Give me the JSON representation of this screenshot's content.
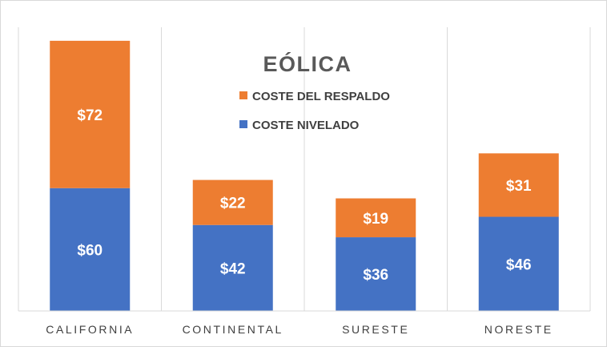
{
  "chart_data": {
    "type": "bar",
    "stacked": true,
    "title": "EÓLICA",
    "categories": [
      "CALIFORNIA",
      "CONTINENTAL",
      "SURESTE",
      "NORESTE"
    ],
    "series": [
      {
        "name": "COSTE NIVELADO",
        "color": "#4472C4",
        "values": [
          60,
          42,
          36,
          46
        ],
        "labels": [
          "$60",
          "$42",
          "$36",
          "$46"
        ]
      },
      {
        "name": "COSTE DEL RESPALDO",
        "color": "#ED7D31",
        "values": [
          72,
          22,
          19,
          31
        ],
        "labels": [
          "$72",
          "$22",
          "$19",
          "$31"
        ]
      }
    ],
    "legend": {
      "position": "top-center",
      "order": [
        "COSTE DEL RESPALDO",
        "COSTE NIVELADO"
      ]
    },
    "ylim": [
      0,
      140
    ],
    "grid": "vertical-category-separators",
    "xlabel": "",
    "ylabel": ""
  }
}
